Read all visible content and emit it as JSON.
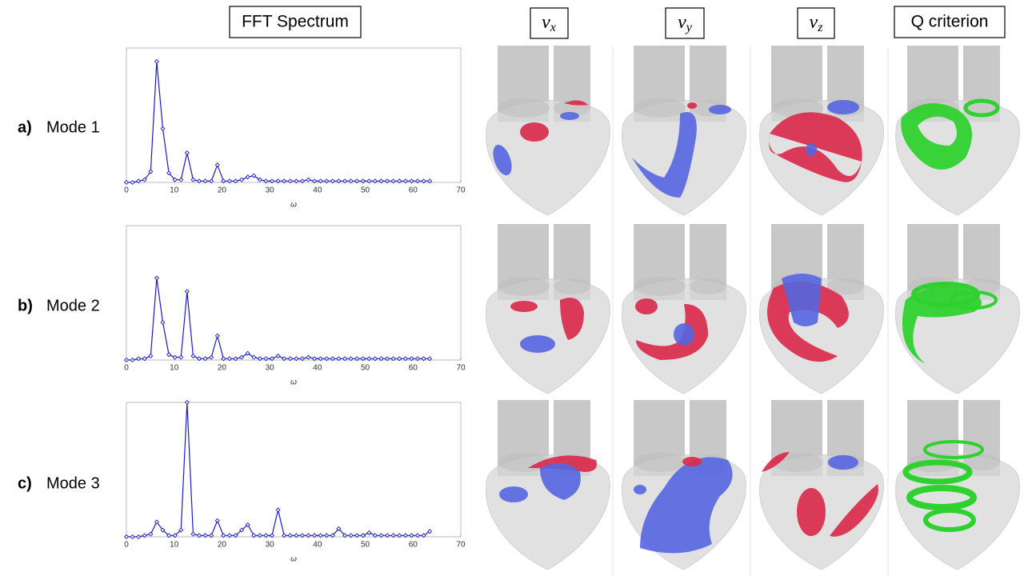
{
  "headers": [
    {
      "text": "FFT Spectrum"
    },
    {
      "symbol": "v",
      "subscript": "x"
    },
    {
      "symbol": "v",
      "subscript": "y"
    },
    {
      "symbol": "v",
      "subscript": "z"
    },
    {
      "text": "Q criterion"
    }
  ],
  "rows": [
    {
      "letter": "a)",
      "label": "Mode 1"
    },
    {
      "letter": "b)",
      "label": "Mode 2"
    },
    {
      "letter": "c)",
      "label": "Mode 3"
    }
  ],
  "chart_data": [
    {
      "type": "line",
      "xlabel": "ω",
      "xlim": [
        0,
        70
      ],
      "xticks": [
        0,
        10,
        20,
        30,
        40,
        50,
        60,
        70
      ],
      "ylim": [
        0,
        1
      ],
      "x": [
        0,
        1.27,
        2.54,
        3.81,
        5.08,
        6.35,
        7.62,
        8.89,
        10.16,
        11.43,
        12.7,
        13.97,
        15.24,
        16.51,
        17.78,
        19.05,
        20.32,
        21.59,
        22.86,
        24.13,
        25.4,
        26.67,
        27.94,
        29.21,
        30.48,
        31.75,
        33.02,
        34.29,
        35.56,
        36.83,
        38.1,
        39.37,
        40.64,
        41.91,
        43.18,
        44.45,
        45.72,
        46.99,
        48.26,
        49.53,
        50.8,
        52.07,
        53.34,
        54.61,
        55.88,
        57.15,
        58.42,
        59.69,
        60.96,
        62.23,
        63.5
      ],
      "series": [
        {
          "color": "#1a1acc",
          "values": [
            0,
            0,
            0.01,
            0.02,
            0.08,
            0.9,
            0.4,
            0.07,
            0.02,
            0.02,
            0.22,
            0.02,
            0.01,
            0.01,
            0.01,
            0.13,
            0.01,
            0.01,
            0.01,
            0.02,
            0.04,
            0.05,
            0.02,
            0.01,
            0.01,
            0.01,
            0.01,
            0.01,
            0.01,
            0.01,
            0.02,
            0.01,
            0.01,
            0.01,
            0.01,
            0.01,
            0.01,
            0.01,
            0.01,
            0.01,
            0.01,
            0.01,
            0.01,
            0.01,
            0.01,
            0.01,
            0.01,
            0.01,
            0.01,
            0.01,
            0.01
          ]
        }
      ]
    },
    {
      "type": "line",
      "xlabel": "ω",
      "xlim": [
        0,
        70
      ],
      "xticks": [
        0,
        10,
        20,
        30,
        40,
        50,
        60,
        70
      ],
      "ylim": [
        0,
        1
      ],
      "x": [
        0,
        1.27,
        2.54,
        3.81,
        5.08,
        6.35,
        7.62,
        8.89,
        10.16,
        11.43,
        12.7,
        13.97,
        15.24,
        16.51,
        17.78,
        19.05,
        20.32,
        21.59,
        22.86,
        24.13,
        25.4,
        26.67,
        27.94,
        29.21,
        30.48,
        31.75,
        33.02,
        34.29,
        35.56,
        36.83,
        38.1,
        39.37,
        40.64,
        41.91,
        43.18,
        44.45,
        45.72,
        46.99,
        48.26,
        49.53,
        50.8,
        52.07,
        53.34,
        54.61,
        55.88,
        57.15,
        58.42,
        59.69,
        60.96,
        62.23,
        63.5
      ],
      "series": [
        {
          "color": "#1a1acc",
          "values": [
            0,
            0,
            0.01,
            0.01,
            0.03,
            0.61,
            0.28,
            0.04,
            0.02,
            0.02,
            0.51,
            0.03,
            0.01,
            0.01,
            0.02,
            0.18,
            0.01,
            0.01,
            0.01,
            0.02,
            0.05,
            0.02,
            0.01,
            0.01,
            0.01,
            0.03,
            0.01,
            0.01,
            0.01,
            0.01,
            0.02,
            0.01,
            0.01,
            0.01,
            0.01,
            0.01,
            0.01,
            0.01,
            0.01,
            0.01,
            0.01,
            0.01,
            0.01,
            0.01,
            0.01,
            0.01,
            0.01,
            0.01,
            0.01,
            0.01,
            0.01
          ]
        }
      ]
    },
    {
      "type": "line",
      "xlabel": "ω",
      "xlim": [
        0,
        70
      ],
      "xticks": [
        0,
        10,
        20,
        30,
        40,
        50,
        60,
        70
      ],
      "ylim": [
        0,
        1
      ],
      "x": [
        0,
        1.27,
        2.54,
        3.81,
        5.08,
        6.35,
        7.62,
        8.89,
        10.16,
        11.43,
        12.7,
        13.97,
        15.24,
        16.51,
        17.78,
        19.05,
        20.32,
        21.59,
        22.86,
        24.13,
        25.4,
        26.67,
        27.94,
        29.21,
        30.48,
        31.75,
        33.02,
        34.29,
        35.56,
        36.83,
        38.1,
        39.37,
        40.64,
        41.91,
        43.18,
        44.45,
        45.72,
        46.99,
        48.26,
        49.53,
        50.8,
        52.07,
        53.34,
        54.61,
        55.88,
        57.15,
        58.42,
        59.69,
        60.96,
        62.23,
        63.5
      ],
      "series": [
        {
          "color": "#1a1acc",
          "values": [
            0,
            0,
            0,
            0.01,
            0.02,
            0.11,
            0.05,
            0.01,
            0.01,
            0.05,
            1.0,
            0.02,
            0.01,
            0.01,
            0.01,
            0.12,
            0.01,
            0.01,
            0.01,
            0.05,
            0.09,
            0.01,
            0.01,
            0.01,
            0.01,
            0.2,
            0.01,
            0.01,
            0.01,
            0.01,
            0.01,
            0.01,
            0.01,
            0.01,
            0.01,
            0.06,
            0.01,
            0.01,
            0.01,
            0.01,
            0.03,
            0.01,
            0.01,
            0.01,
            0.01,
            0.01,
            0.01,
            0.01,
            0.01,
            0.01,
            0.04
          ]
        }
      ]
    }
  ]
}
